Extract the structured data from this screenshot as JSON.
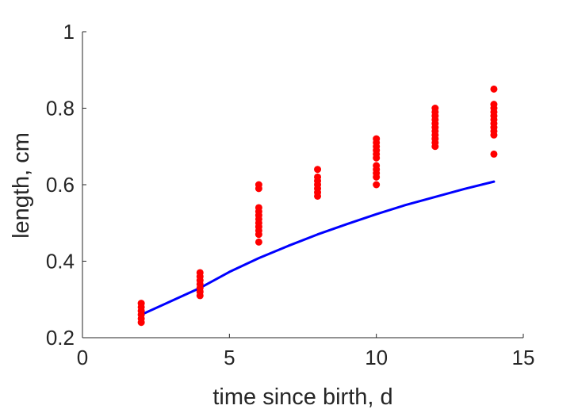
{
  "chart_data": {
    "type": "scatter",
    "title": "",
    "xlabel": "time since birth, d",
    "ylabel": "length, cm",
    "xlim": [
      0,
      15
    ],
    "ylim": [
      0.2,
      1
    ],
    "xticks": [
      "0",
      "5",
      "10",
      "15"
    ],
    "yticks": [
      "0.2",
      "0.4",
      "0.6",
      "0.8",
      "1"
    ],
    "xtick_values": [
      0,
      5,
      10,
      15
    ],
    "ytick_values": [
      0.2,
      0.4,
      0.6,
      0.8,
      1.0
    ],
    "grid": false,
    "legend": "none",
    "series": [
      {
        "type": "scatter",
        "color": "#ff0000",
        "points": [
          {
            "x": 2,
            "y": 0.24
          },
          {
            "x": 2,
            "y": 0.25
          },
          {
            "x": 2,
            "y": 0.26
          },
          {
            "x": 2,
            "y": 0.27
          },
          {
            "x": 2,
            "y": 0.28
          },
          {
            "x": 2,
            "y": 0.29
          },
          {
            "x": 4,
            "y": 0.31
          },
          {
            "x": 4,
            "y": 0.32
          },
          {
            "x": 4,
            "y": 0.33
          },
          {
            "x": 4,
            "y": 0.34
          },
          {
            "x": 4,
            "y": 0.35
          },
          {
            "x": 4,
            "y": 0.36
          },
          {
            "x": 4,
            "y": 0.37
          },
          {
            "x": 6,
            "y": 0.45
          },
          {
            "x": 6,
            "y": 0.47
          },
          {
            "x": 6,
            "y": 0.48
          },
          {
            "x": 6,
            "y": 0.49
          },
          {
            "x": 6,
            "y": 0.5
          },
          {
            "x": 6,
            "y": 0.51
          },
          {
            "x": 6,
            "y": 0.52
          },
          {
            "x": 6,
            "y": 0.53
          },
          {
            "x": 6,
            "y": 0.54
          },
          {
            "x": 6,
            "y": 0.59
          },
          {
            "x": 6,
            "y": 0.6
          },
          {
            "x": 8,
            "y": 0.57
          },
          {
            "x": 8,
            "y": 0.58
          },
          {
            "x": 8,
            "y": 0.59
          },
          {
            "x": 8,
            "y": 0.6
          },
          {
            "x": 8,
            "y": 0.61
          },
          {
            "x": 8,
            "y": 0.62
          },
          {
            "x": 8,
            "y": 0.64
          },
          {
            "x": 10,
            "y": 0.6
          },
          {
            "x": 10,
            "y": 0.62
          },
          {
            "x": 10,
            "y": 0.63
          },
          {
            "x": 10,
            "y": 0.64
          },
          {
            "x": 10,
            "y": 0.65
          },
          {
            "x": 10,
            "y": 0.67
          },
          {
            "x": 10,
            "y": 0.68
          },
          {
            "x": 10,
            "y": 0.69
          },
          {
            "x": 10,
            "y": 0.7
          },
          {
            "x": 10,
            "y": 0.71
          },
          {
            "x": 10,
            "y": 0.72
          },
          {
            "x": 12,
            "y": 0.7
          },
          {
            "x": 12,
            "y": 0.71
          },
          {
            "x": 12,
            "y": 0.72
          },
          {
            "x": 12,
            "y": 0.73
          },
          {
            "x": 12,
            "y": 0.74
          },
          {
            "x": 12,
            "y": 0.75
          },
          {
            "x": 12,
            "y": 0.76
          },
          {
            "x": 12,
            "y": 0.77
          },
          {
            "x": 12,
            "y": 0.78
          },
          {
            "x": 12,
            "y": 0.79
          },
          {
            "x": 12,
            "y": 0.8
          },
          {
            "x": 14,
            "y": 0.68
          },
          {
            "x": 14,
            "y": 0.73
          },
          {
            "x": 14,
            "y": 0.74
          },
          {
            "x": 14,
            "y": 0.75
          },
          {
            "x": 14,
            "y": 0.76
          },
          {
            "x": 14,
            "y": 0.77
          },
          {
            "x": 14,
            "y": 0.78
          },
          {
            "x": 14,
            "y": 0.79
          },
          {
            "x": 14,
            "y": 0.8
          },
          {
            "x": 14,
            "y": 0.81
          },
          {
            "x": 14,
            "y": 0.85
          }
        ]
      },
      {
        "type": "line",
        "color": "#0000ff",
        "x": [
          2,
          3,
          4,
          5,
          6,
          7,
          8,
          9,
          10,
          11,
          12,
          13,
          14
        ],
        "y": [
          0.26,
          0.295,
          0.33,
          0.372,
          0.408,
          0.44,
          0.47,
          0.497,
          0.523,
          0.547,
          0.568,
          0.589,
          0.608
        ]
      }
    ]
  }
}
